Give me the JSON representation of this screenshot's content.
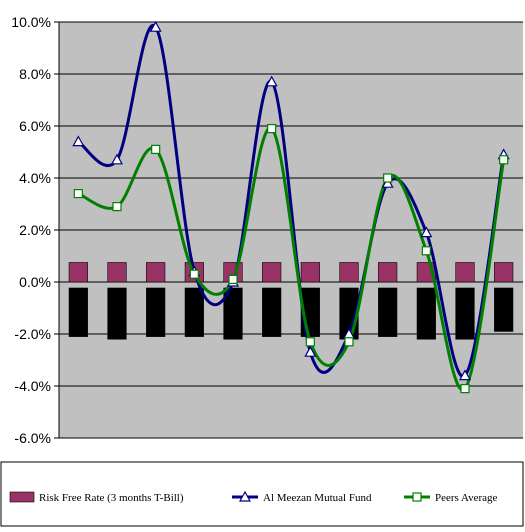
{
  "chart_data": {
    "type": "line",
    "title": "",
    "xlabel": "",
    "ylabel": "",
    "ylim": [
      -6,
      10
    ],
    "yticks": [
      "10.0%",
      "8.0%",
      "6.0%",
      "4.0%",
      "2.0%",
      "0.0%",
      "-2.0%",
      "-4.0%",
      "-6.0%"
    ],
    "grid": true,
    "legend_position": "bottom",
    "plot_background": "#c0c0c0",
    "n_points": 12,
    "series": [
      {
        "name": "Risk Free Rate (3 months T-Bill)",
        "kind": "bar",
        "color": "#993366",
        "values": [
          0.75,
          0.75,
          0.75,
          0.75,
          0.75,
          0.75,
          0.75,
          0.75,
          0.75,
          0.75,
          0.75,
          0.75
        ]
      },
      {
        "name": "",
        "kind": "bar",
        "color": "#000000",
        "values": [
          -2.1,
          -2.2,
          -2.1,
          -2.1,
          -2.2,
          -2.1,
          -2.1,
          -2.2,
          -2.1,
          -2.2,
          -2.2,
          -1.9
        ]
      },
      {
        "name": "Al Meezan Mutual Fund",
        "kind": "line",
        "color": "#000080",
        "marker": "triangle",
        "values": [
          5.4,
          4.7,
          9.8,
          0.4,
          0.0,
          7.7,
          -2.7,
          -2.0,
          3.8,
          1.9,
          -3.6,
          4.9
        ]
      },
      {
        "name": "Peers Average",
        "kind": "line",
        "color": "#008000",
        "marker": "square",
        "values": [
          3.4,
          2.9,
          5.1,
          0.3,
          0.1,
          5.9,
          -2.3,
          -2.3,
          4.0,
          1.2,
          -4.1,
          4.7
        ]
      }
    ]
  }
}
